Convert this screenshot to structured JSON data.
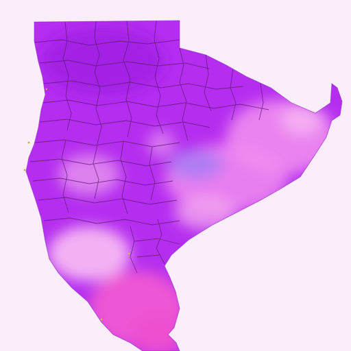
{
  "map": {
    "kind": "choropleth region map",
    "labels": [],
    "colors": {
      "background": "#fbeefb",
      "region_fill_main": "#b52ef0",
      "region_fill_dark": "#9b1fe0",
      "region_fill_light": "#f08cf0",
      "region_fill_pale": "#f7b8f3",
      "region_fill_hot": "#f05ad2",
      "region_fill_bluish": "#a77df2",
      "county_border": "#5a1a6e",
      "coast_speck": "#c8b84a"
    }
  }
}
